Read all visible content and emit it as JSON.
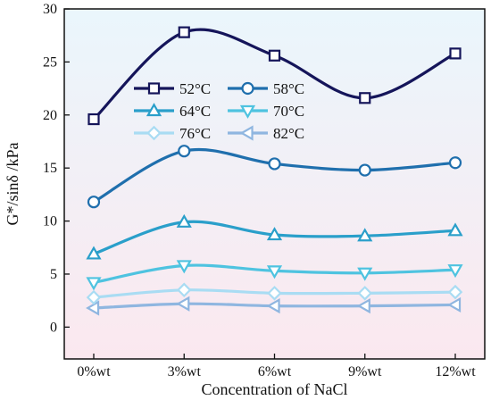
{
  "chart_data": {
    "type": "line",
    "title": "",
    "xlabel": "Concentration of NaCl",
    "ylabel": "G*/sinδ /kPa",
    "categories": [
      "0%wt",
      "3%wt",
      "6%wt",
      "9%wt",
      "12%wt"
    ],
    "ylim": [
      -3,
      30
    ],
    "yticks": [
      0,
      5,
      10,
      15,
      20,
      25,
      30
    ],
    "grid": false,
    "legend_position": "top-left",
    "background_gradient": [
      "#eaf6fc",
      "#fbe8ef"
    ],
    "series": [
      {
        "name": "52°C",
        "values": [
          19.6,
          27.8,
          25.6,
          21.6,
          25.8
        ],
        "color": "#15155a",
        "marker": "square"
      },
      {
        "name": "58°C",
        "values": [
          11.8,
          16.6,
          15.4,
          14.8,
          15.5
        ],
        "color": "#1f6fad",
        "marker": "circle"
      },
      {
        "name": "64°C",
        "values": [
          6.9,
          9.9,
          8.7,
          8.6,
          9.1
        ],
        "color": "#2a9fca",
        "marker": "triangle-up"
      },
      {
        "name": "70°C",
        "values": [
          4.2,
          5.8,
          5.3,
          5.1,
          5.4
        ],
        "color": "#4ec3e0",
        "marker": "triangle-down"
      },
      {
        "name": "76°C",
        "values": [
          2.8,
          3.5,
          3.2,
          3.2,
          3.3
        ],
        "color": "#a9dcf3",
        "marker": "diamond"
      },
      {
        "name": "82°C",
        "values": [
          1.8,
          2.2,
          2.0,
          2.0,
          2.1
        ],
        "color": "#8fb6e0",
        "marker": "triangle-left"
      }
    ]
  }
}
